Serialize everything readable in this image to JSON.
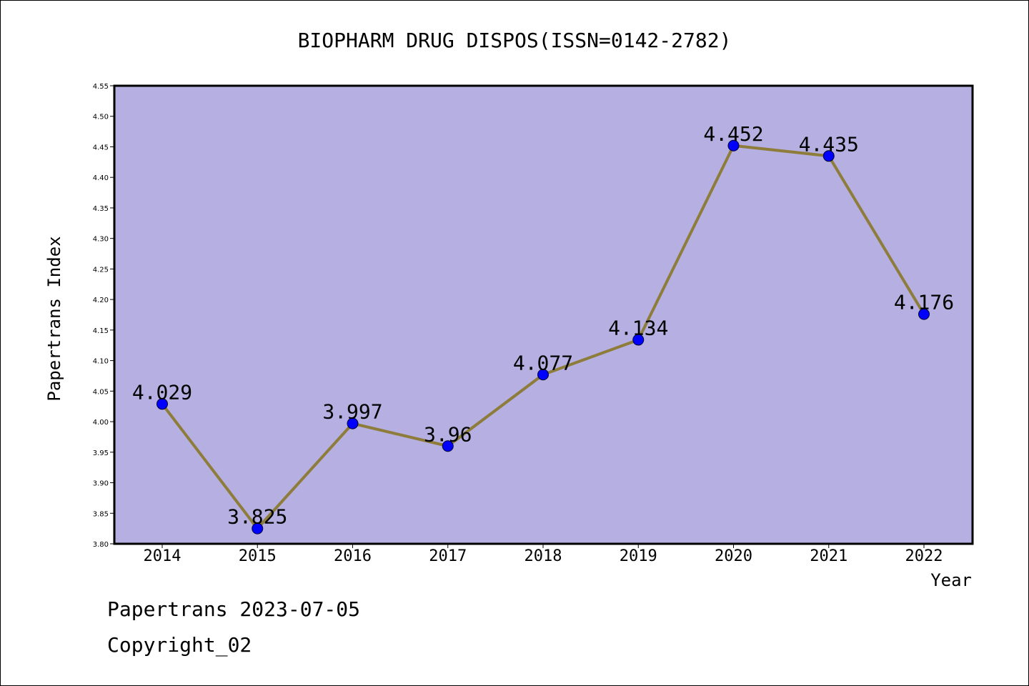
{
  "chart_data": {
    "type": "line",
    "title": "BIOPHARM DRUG DISPOS(ISSN=0142-2782)",
    "xlabel": "Year",
    "ylabel": "Papertrans Index",
    "categories": [
      "2014",
      "2015",
      "2016",
      "2017",
      "2018",
      "2019",
      "2020",
      "2021",
      "2022"
    ],
    "values": [
      4.029,
      3.825,
      3.997,
      3.96,
      4.077,
      4.134,
      4.452,
      4.435,
      4.176
    ],
    "data_labels": [
      "4.029",
      "3.825",
      "3.997",
      "3.96",
      "4.077",
      "4.134",
      "4.452",
      "4.435",
      "4.176"
    ],
    "ylim": [
      3.8,
      4.55
    ],
    "yticks": [
      "3.80",
      "3.85",
      "3.90",
      "3.95",
      "4.00",
      "4.05",
      "4.10",
      "4.15",
      "4.20",
      "4.25",
      "4.30",
      "4.35",
      "4.40",
      "4.45",
      "4.50",
      "4.55"
    ],
    "grid": false,
    "colors": {
      "plot_bg": "#b5afe2",
      "line": "#8e7d3a",
      "marker": "#0000ff"
    }
  },
  "footer": {
    "line1": "Papertrans 2023-07-05",
    "line2": "Copyright_02"
  }
}
